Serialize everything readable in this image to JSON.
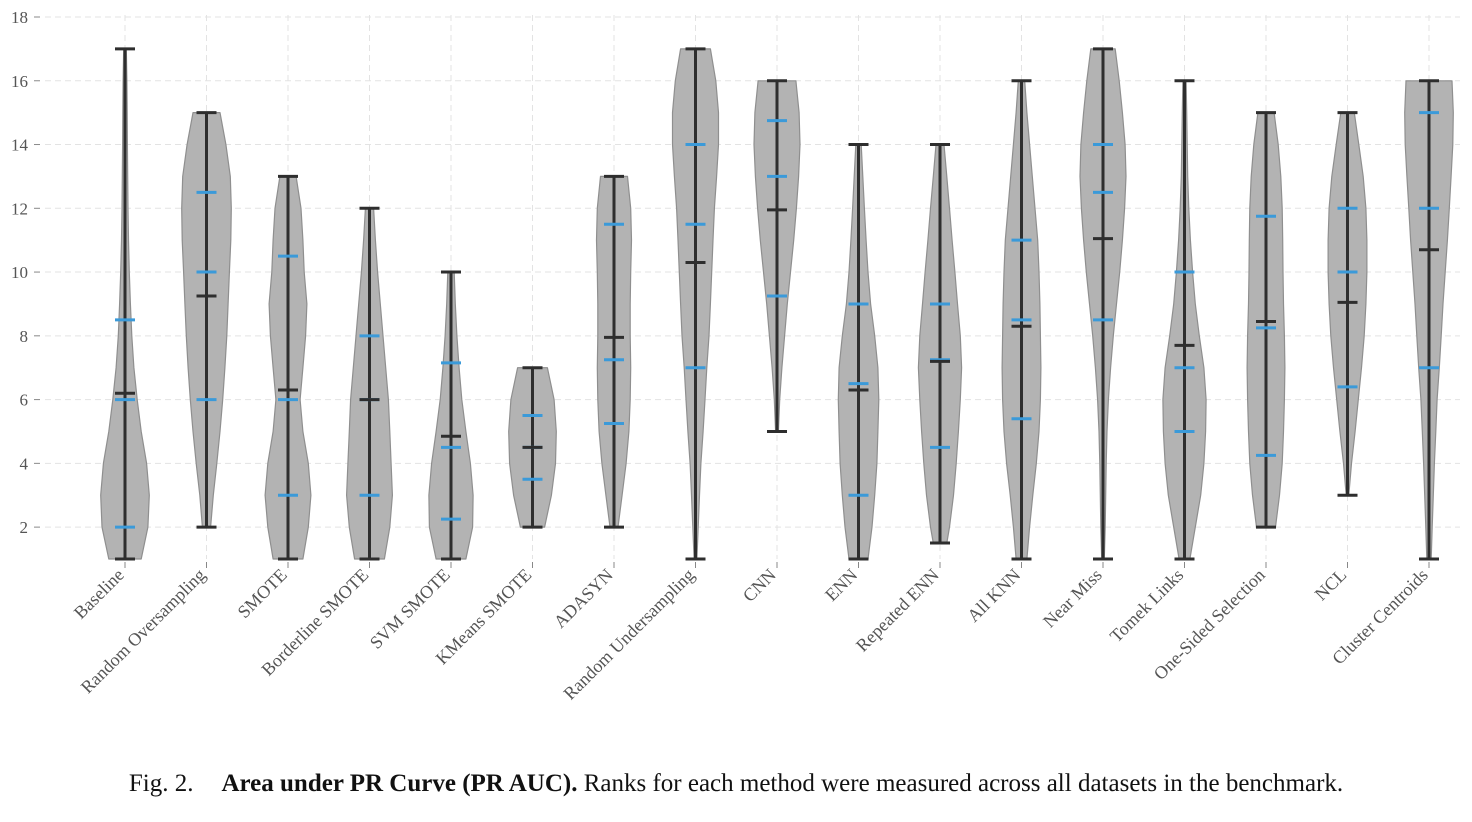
{
  "chart_data": {
    "type": "violin",
    "ylim": [
      1,
      18
    ],
    "yticks": [
      2,
      4,
      6,
      8,
      10,
      12,
      14,
      16,
      18
    ],
    "grid": true,
    "colors": {
      "violin": "#b3b3b3",
      "violin_edge": "#8f8f8f",
      "whisker": "#2e2e2e",
      "quartile": "#3b9ad9"
    },
    "categories": [
      "Baseline",
      "Random Oversampling",
      "SMOTE",
      "Borderline SMOTE",
      "SVM SMOTE",
      "KMeans SMOTE",
      "ADASYN",
      "Random Undersampling",
      "CNN",
      "ENN",
      "Repeated ENN",
      "All KNN",
      "Near Miss",
      "Tomek Links",
      "One-Sided Selection",
      "NCL",
      "Cluster Centroids"
    ],
    "series": [
      {
        "min": 1,
        "max": 17,
        "mean": 6.2,
        "quartiles": [
          2,
          6,
          8.5
        ],
        "profile": [
          [
            1,
            0.6
          ],
          [
            2,
            0.85
          ],
          [
            3,
            0.9
          ],
          [
            4,
            0.8
          ],
          [
            5,
            0.6
          ],
          [
            6,
            0.45
          ],
          [
            7,
            0.33
          ],
          [
            8,
            0.25
          ],
          [
            9,
            0.2
          ],
          [
            10,
            0.16
          ],
          [
            11,
            0.13
          ],
          [
            12,
            0.11
          ],
          [
            13,
            0.1
          ],
          [
            14,
            0.09
          ],
          [
            15,
            0.08
          ],
          [
            16,
            0.07
          ],
          [
            17,
            0.05
          ]
        ]
      },
      {
        "min": 2,
        "max": 15,
        "mean": 9.25,
        "quartiles": [
          6,
          10,
          12.5
        ],
        "profile": [
          [
            2,
            0.15
          ],
          [
            3,
            0.25
          ],
          [
            4,
            0.38
          ],
          [
            5,
            0.5
          ],
          [
            6,
            0.6
          ],
          [
            7,
            0.68
          ],
          [
            8,
            0.75
          ],
          [
            9,
            0.8
          ],
          [
            10,
            0.85
          ],
          [
            11,
            0.9
          ],
          [
            12,
            0.92
          ],
          [
            13,
            0.88
          ],
          [
            14,
            0.72
          ],
          [
            15,
            0.5
          ]
        ]
      },
      {
        "min": 1,
        "max": 13,
        "mean": 6.3,
        "quartiles": [
          3,
          6,
          10.5
        ],
        "profile": [
          [
            1,
            0.55
          ],
          [
            2,
            0.75
          ],
          [
            3,
            0.85
          ],
          [
            4,
            0.75
          ],
          [
            5,
            0.55
          ],
          [
            6,
            0.45
          ],
          [
            7,
            0.55
          ],
          [
            8,
            0.65
          ],
          [
            9,
            0.7
          ],
          [
            10,
            0.6
          ],
          [
            11,
            0.55
          ],
          [
            12,
            0.48
          ],
          [
            13,
            0.3
          ]
        ]
      },
      {
        "min": 1,
        "max": 12,
        "mean": 6.0,
        "quartiles": [
          3,
          6,
          8
        ],
        "profile": [
          [
            1,
            0.55
          ],
          [
            2,
            0.75
          ],
          [
            3,
            0.85
          ],
          [
            4,
            0.8
          ],
          [
            5,
            0.75
          ],
          [
            6,
            0.7
          ],
          [
            7,
            0.6
          ],
          [
            8,
            0.5
          ],
          [
            9,
            0.4
          ],
          [
            10,
            0.3
          ],
          [
            11,
            0.22
          ],
          [
            12,
            0.15
          ]
        ]
      },
      {
        "min": 1,
        "max": 10,
        "mean": 4.85,
        "quartiles": [
          2.25,
          4.5,
          7.15
        ],
        "profile": [
          [
            1,
            0.55
          ],
          [
            2,
            0.8
          ],
          [
            3,
            0.82
          ],
          [
            4,
            0.72
          ],
          [
            5,
            0.55
          ],
          [
            6,
            0.4
          ],
          [
            7,
            0.3
          ],
          [
            8,
            0.22
          ],
          [
            9,
            0.16
          ],
          [
            10,
            0.12
          ]
        ]
      },
      {
        "min": 2,
        "max": 7,
        "mean": 4.5,
        "quartiles": [
          3.5,
          4.5,
          5.5
        ],
        "profile": [
          [
            2,
            0.45
          ],
          [
            3,
            0.7
          ],
          [
            4,
            0.85
          ],
          [
            5,
            0.88
          ],
          [
            6,
            0.8
          ],
          [
            7,
            0.55
          ]
        ]
      },
      {
        "min": 2,
        "max": 13,
        "mean": 7.95,
        "quartiles": [
          5.25,
          7.25,
          11.5
        ],
        "profile": [
          [
            2,
            0.15
          ],
          [
            3,
            0.3
          ],
          [
            4,
            0.45
          ],
          [
            5,
            0.55
          ],
          [
            6,
            0.6
          ],
          [
            7,
            0.62
          ],
          [
            8,
            0.6
          ],
          [
            9,
            0.6
          ],
          [
            10,
            0.62
          ],
          [
            11,
            0.65
          ],
          [
            12,
            0.62
          ],
          [
            13,
            0.5
          ]
        ]
      },
      {
        "min": 1,
        "max": 17,
        "mean": 10.3,
        "quartiles": [
          7,
          11.5,
          14
        ],
        "profile": [
          [
            1,
            0.05
          ],
          [
            2,
            0.1
          ],
          [
            3,
            0.15
          ],
          [
            4,
            0.2
          ],
          [
            5,
            0.28
          ],
          [
            6,
            0.35
          ],
          [
            7,
            0.42
          ],
          [
            8,
            0.5
          ],
          [
            9,
            0.55
          ],
          [
            10,
            0.6
          ],
          [
            11,
            0.65
          ],
          [
            12,
            0.7
          ],
          [
            13,
            0.78
          ],
          [
            14,
            0.85
          ],
          [
            15,
            0.85
          ],
          [
            16,
            0.75
          ],
          [
            17,
            0.55
          ]
        ]
      },
      {
        "min": 5,
        "max": 16,
        "mean": 11.95,
        "quartiles": [
          9.25,
          13,
          14.75
        ],
        "profile": [
          [
            5,
            0.05
          ],
          [
            6,
            0.1
          ],
          [
            7,
            0.18
          ],
          [
            8,
            0.28
          ],
          [
            9,
            0.38
          ],
          [
            10,
            0.5
          ],
          [
            11,
            0.62
          ],
          [
            12,
            0.72
          ],
          [
            13,
            0.8
          ],
          [
            14,
            0.85
          ],
          [
            15,
            0.82
          ],
          [
            16,
            0.7
          ]
        ]
      },
      {
        "min": 1,
        "max": 14,
        "mean": 6.3,
        "quartiles": [
          3,
          6.5,
          9
        ],
        "profile": [
          [
            1,
            0.35
          ],
          [
            2,
            0.5
          ],
          [
            3,
            0.6
          ],
          [
            4,
            0.68
          ],
          [
            5,
            0.72
          ],
          [
            6,
            0.75
          ],
          [
            7,
            0.72
          ],
          [
            8,
            0.6
          ],
          [
            9,
            0.45
          ],
          [
            10,
            0.35
          ],
          [
            11,
            0.28
          ],
          [
            12,
            0.22
          ],
          [
            13,
            0.16
          ],
          [
            14,
            0.1
          ]
        ]
      },
      {
        "min": 1.5,
        "max": 14,
        "mean": 7.2,
        "quartiles": [
          4.5,
          7.25,
          9
        ],
        "profile": [
          [
            1.5,
            0.25
          ],
          [
            2,
            0.35
          ],
          [
            3,
            0.5
          ],
          [
            4,
            0.6
          ],
          [
            5,
            0.68
          ],
          [
            6,
            0.75
          ],
          [
            7,
            0.8
          ],
          [
            8,
            0.75
          ],
          [
            9,
            0.65
          ],
          [
            10,
            0.55
          ],
          [
            11,
            0.45
          ],
          [
            12,
            0.35
          ],
          [
            13,
            0.25
          ],
          [
            14,
            0.15
          ]
        ]
      },
      {
        "min": 1,
        "max": 16,
        "mean": 8.3,
        "quartiles": [
          5.4,
          8.5,
          11
        ],
        "profile": [
          [
            1,
            0.2
          ],
          [
            2,
            0.3
          ],
          [
            3,
            0.42
          ],
          [
            4,
            0.55
          ],
          [
            5,
            0.65
          ],
          [
            6,
            0.7
          ],
          [
            7,
            0.72
          ],
          [
            8,
            0.7
          ],
          [
            9,
            0.68
          ],
          [
            10,
            0.65
          ],
          [
            11,
            0.6
          ],
          [
            12,
            0.5
          ],
          [
            13,
            0.4
          ],
          [
            14,
            0.3
          ],
          [
            15,
            0.2
          ],
          [
            16,
            0.12
          ]
        ]
      },
      {
        "min": 1,
        "max": 17,
        "mean": 11.05,
        "quartiles": [
          8.5,
          12.5,
          14
        ],
        "profile": [
          [
            1,
            0.05
          ],
          [
            2,
            0.08
          ],
          [
            3,
            0.1
          ],
          [
            4,
            0.12
          ],
          [
            5,
            0.15
          ],
          [
            6,
            0.2
          ],
          [
            7,
            0.28
          ],
          [
            8,
            0.38
          ],
          [
            9,
            0.5
          ],
          [
            10,
            0.62
          ],
          [
            11,
            0.72
          ],
          [
            12,
            0.8
          ],
          [
            13,
            0.85
          ],
          [
            14,
            0.82
          ],
          [
            15,
            0.72
          ],
          [
            16,
            0.6
          ],
          [
            17,
            0.45
          ]
        ]
      },
      {
        "min": 1,
        "max": 16,
        "mean": 7.7,
        "quartiles": [
          5,
          7,
          10
        ],
        "profile": [
          [
            1,
            0.2
          ],
          [
            2,
            0.4
          ],
          [
            3,
            0.6
          ],
          [
            4,
            0.72
          ],
          [
            5,
            0.78
          ],
          [
            6,
            0.8
          ],
          [
            7,
            0.72
          ],
          [
            8,
            0.55
          ],
          [
            9,
            0.4
          ],
          [
            10,
            0.3
          ],
          [
            11,
            0.22
          ],
          [
            12,
            0.16
          ],
          [
            13,
            0.12
          ],
          [
            14,
            0.1
          ],
          [
            15,
            0.08
          ],
          [
            16,
            0.06
          ]
        ]
      },
      {
        "min": 2,
        "max": 15,
        "mean": 8.45,
        "quartiles": [
          4.25,
          8.25,
          11.75
        ],
        "profile": [
          [
            2,
            0.35
          ],
          [
            3,
            0.5
          ],
          [
            4,
            0.6
          ],
          [
            5,
            0.65
          ],
          [
            6,
            0.68
          ],
          [
            7,
            0.7
          ],
          [
            8,
            0.68
          ],
          [
            9,
            0.65
          ],
          [
            10,
            0.63
          ],
          [
            11,
            0.62
          ],
          [
            12,
            0.6
          ],
          [
            13,
            0.55
          ],
          [
            14,
            0.45
          ],
          [
            15,
            0.3
          ]
        ]
      },
      {
        "min": 3,
        "max": 15,
        "mean": 9.05,
        "quartiles": [
          6.4,
          10,
          12
        ],
        "profile": [
          [
            3,
            0.05
          ],
          [
            4,
            0.15
          ],
          [
            5,
            0.28
          ],
          [
            6,
            0.4
          ],
          [
            7,
            0.52
          ],
          [
            8,
            0.62
          ],
          [
            9,
            0.68
          ],
          [
            10,
            0.72
          ],
          [
            11,
            0.72
          ],
          [
            12,
            0.68
          ],
          [
            13,
            0.58
          ],
          [
            14,
            0.42
          ],
          [
            15,
            0.25
          ]
        ]
      },
      {
        "min": 1,
        "max": 16,
        "mean": 10.7,
        "quartiles": [
          7,
          12,
          15
        ],
        "profile": [
          [
            1,
            0.08
          ],
          [
            2,
            0.12
          ],
          [
            3,
            0.16
          ],
          [
            4,
            0.2
          ],
          [
            5,
            0.25
          ],
          [
            6,
            0.3
          ],
          [
            7,
            0.38
          ],
          [
            8,
            0.45
          ],
          [
            9,
            0.52
          ],
          [
            10,
            0.6
          ],
          [
            11,
            0.68
          ],
          [
            12,
            0.75
          ],
          [
            13,
            0.82
          ],
          [
            14,
            0.88
          ],
          [
            15,
            0.9
          ],
          [
            16,
            0.85
          ]
        ]
      }
    ]
  },
  "caption": {
    "prefix": "Fig. 2.",
    "bold": "Area under PR Curve (PR AUC).",
    "text": " Ranks for each method were measured across all datasets in the benchmark."
  }
}
